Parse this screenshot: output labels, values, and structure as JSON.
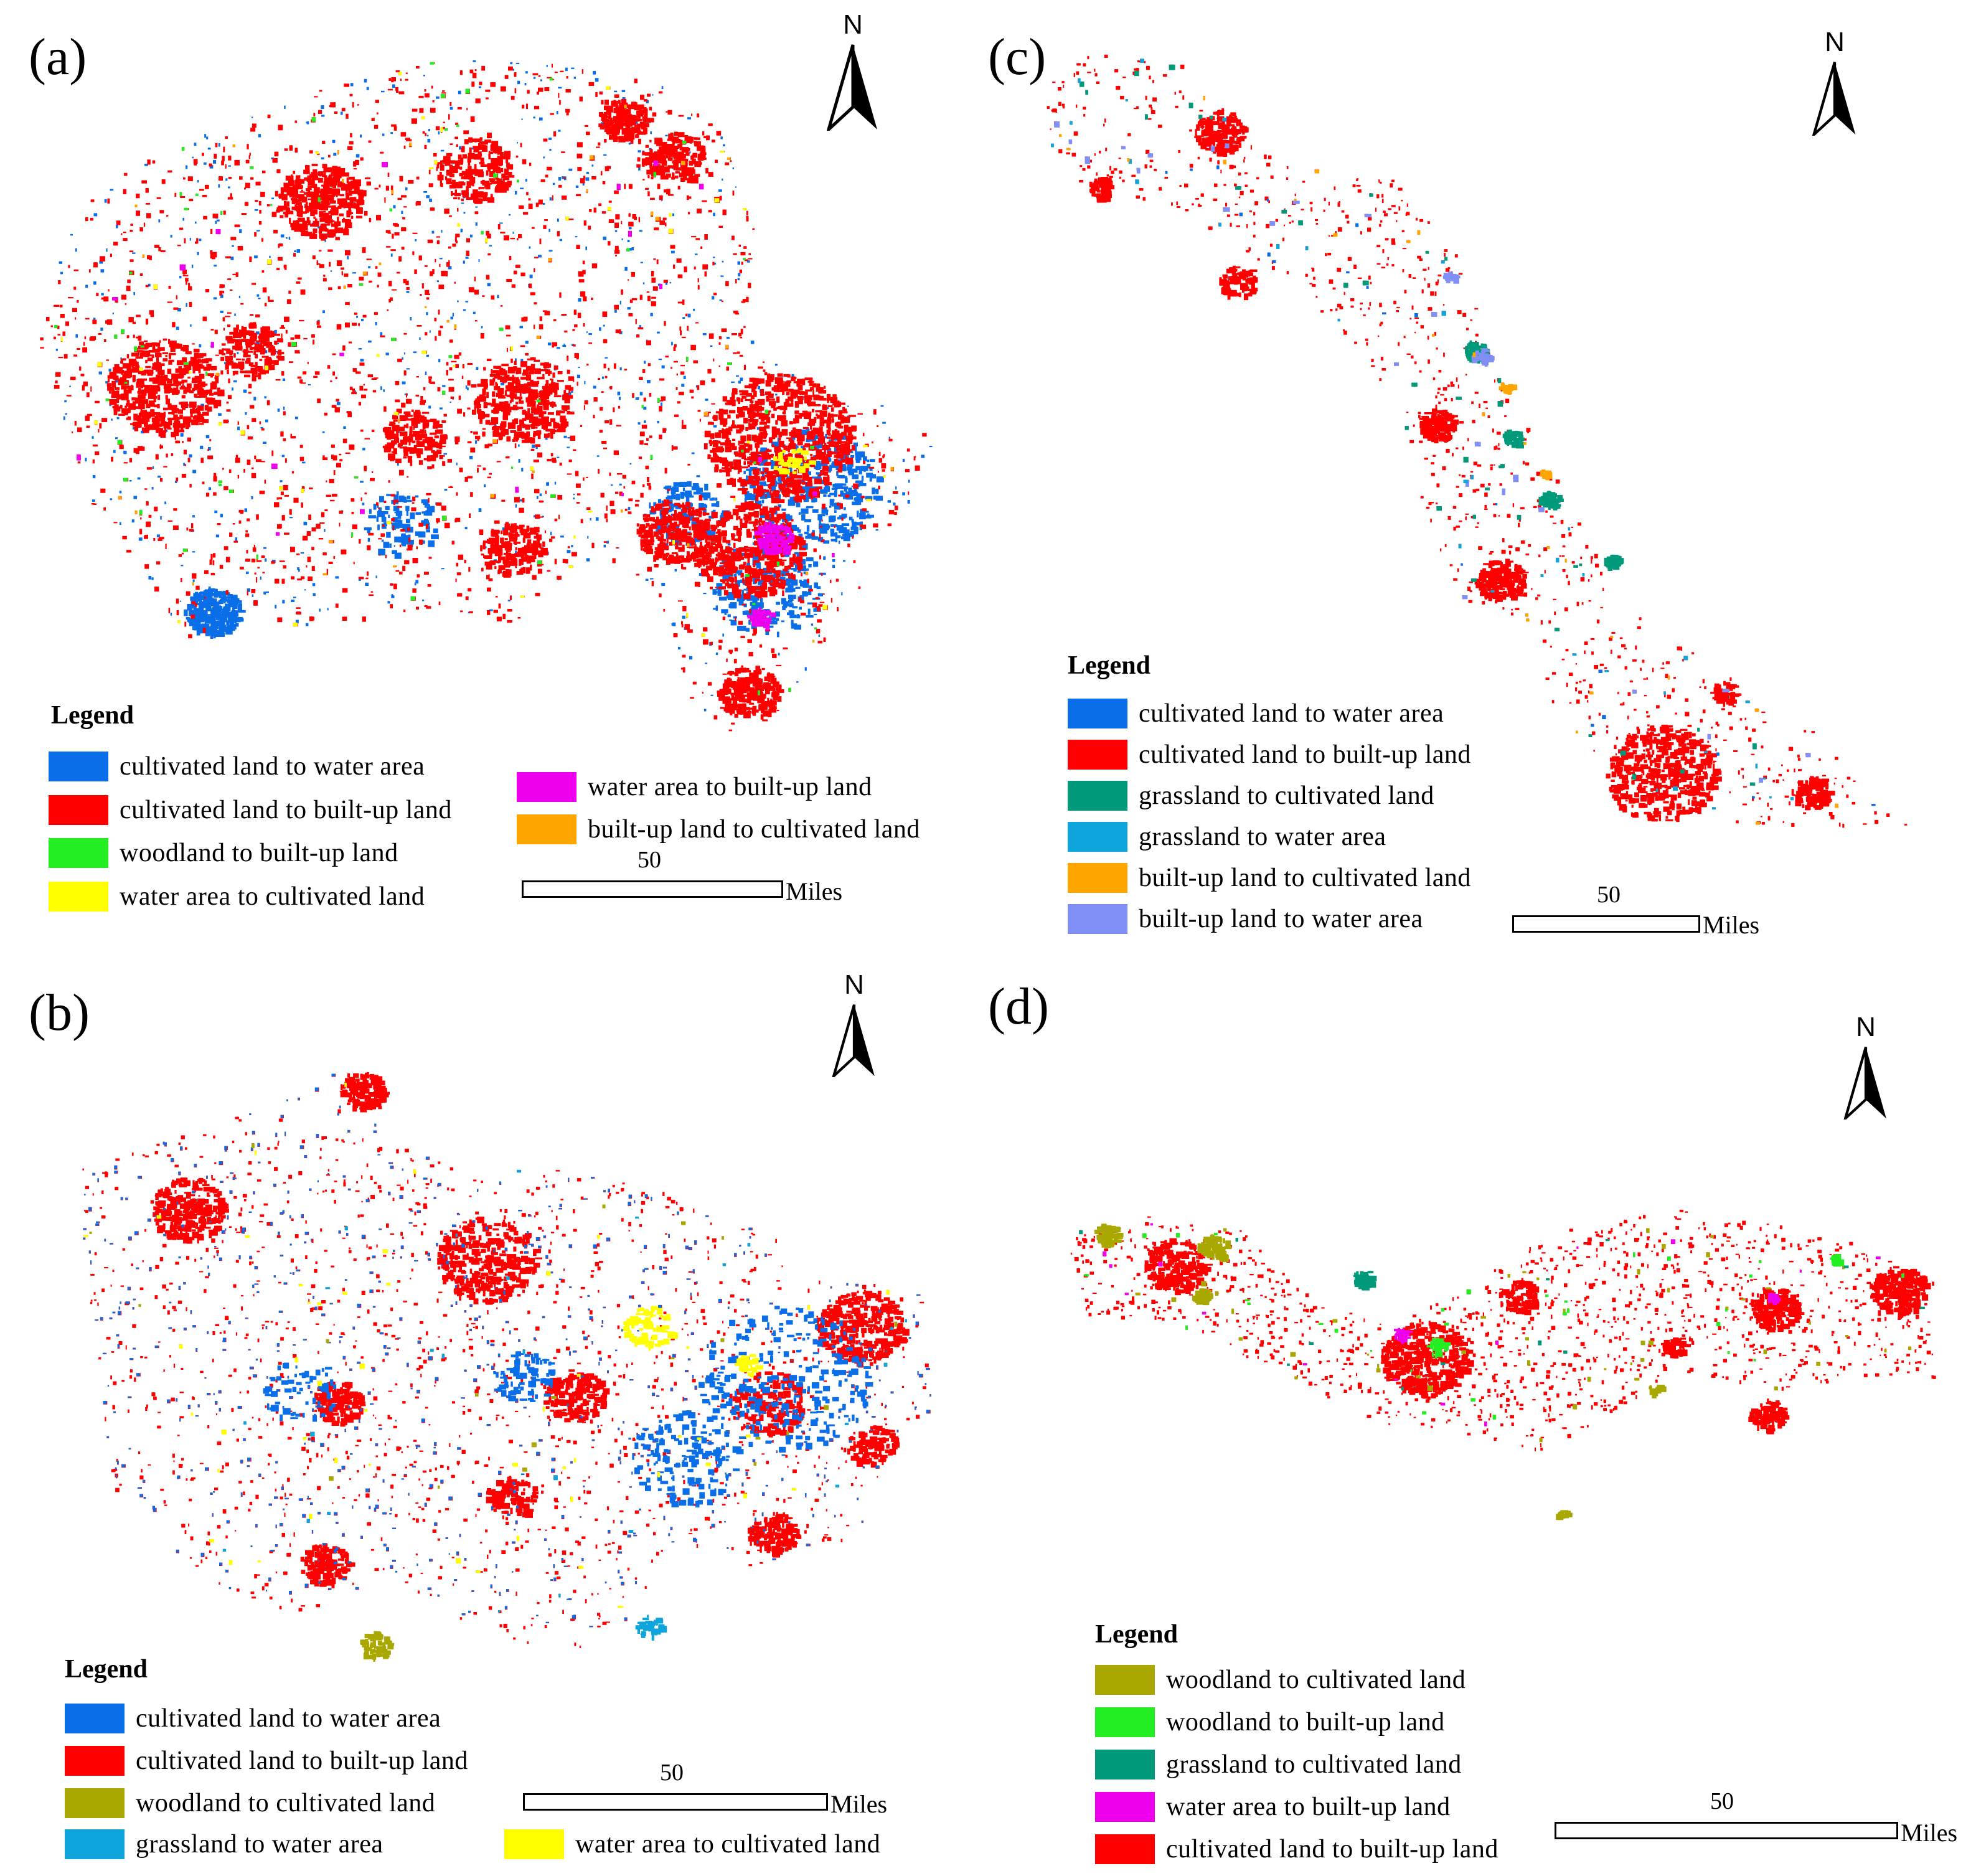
{
  "colors": {
    "cultivated_to_water": "#0a6ee8",
    "cultivated_to_builtup": "#ff0000",
    "woodland_to_builtup": "#22ee22",
    "water_to_cultivated": "#ffff00",
    "water_to_builtup": "#ee00ee",
    "builtup_to_cultivated": "#ffa500",
    "woodland_to_cultivated": "#a8a800",
    "grassland_to_water": "#0ea5dc",
    "grassland_to_cultivated": "#00997a",
    "builtup_to_water": "#7f8ff5"
  },
  "panels": [
    {
      "id": "a",
      "label": "(a)",
      "north": "N",
      "legend_title": "Legend",
      "legend": [
        {
          "label": "cultivated land to water area",
          "color": "#0a6ee8"
        },
        {
          "label": "cultivated land to built-up land",
          "color": "#ff0000"
        },
        {
          "label": "woodland to built-up land",
          "color": "#22ee22"
        },
        {
          "label": "water area to cultivated land",
          "color": "#ffff00"
        },
        {
          "label": "water area to built-up land",
          "color": "#ee00ee"
        },
        {
          "label": "built-up land to cultivated land",
          "color": "#ffa500"
        }
      ],
      "scale": {
        "value": "50",
        "unit": "Miles"
      }
    },
    {
      "id": "b",
      "label": "(b)",
      "north": "N",
      "legend_title": "Legend",
      "legend": [
        {
          "label": "cultivated land to water area",
          "color": "#0a6ee8"
        },
        {
          "label": "cultivated land to built-up land",
          "color": "#ff0000"
        },
        {
          "label": "woodland to cultivated land",
          "color": "#a8a800"
        },
        {
          "label": "grassland to water area",
          "color": "#0ea5dc"
        },
        {
          "label": "water area to cultivated land",
          "color": "#ffff00"
        }
      ],
      "scale": {
        "value": "50",
        "unit": "Miles"
      }
    },
    {
      "id": "c",
      "label": "(c)",
      "north": "N",
      "legend_title": "Legend",
      "legend": [
        {
          "label": "cultivated land to water area",
          "color": "#0a6ee8"
        },
        {
          "label": "cultivated land to built-up land",
          "color": "#ff0000"
        },
        {
          "label": "grassland to cultivated land",
          "color": "#00997a"
        },
        {
          "label": "grassland to water area",
          "color": "#0ea5dc"
        },
        {
          "label": "built-up land to cultivated land",
          "color": "#ffa500"
        },
        {
          "label": "built-up land to water area",
          "color": "#7f8ff5"
        }
      ],
      "scale": {
        "value": "50",
        "unit": "Miles"
      }
    },
    {
      "id": "d",
      "label": "(d)",
      "north": "N",
      "legend_title": "Legend",
      "legend": [
        {
          "label": "woodland to cultivated land",
          "color": "#a8a800"
        },
        {
          "label": "woodland to built-up land",
          "color": "#22ee22"
        },
        {
          "label": "grassland to cultivated land",
          "color": "#00997a"
        },
        {
          "label": "water area to built-up land",
          "color": "#ee00ee"
        },
        {
          "label": "cultivated land to built-up land",
          "color": "#ff0000"
        }
      ],
      "scale": {
        "value": "50",
        "unit": "Miles"
      }
    }
  ]
}
